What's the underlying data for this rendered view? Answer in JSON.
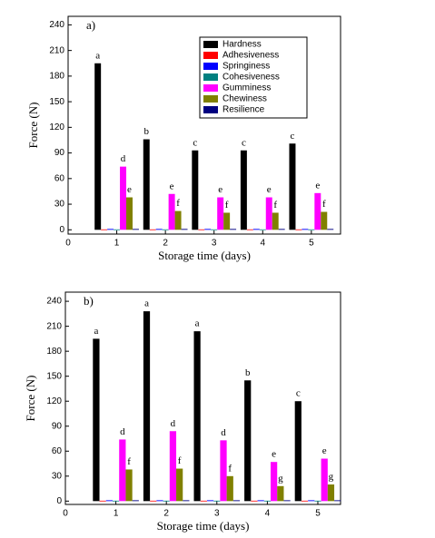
{
  "chart_data": [
    {
      "type": "bar",
      "label": "a)",
      "ylabel": "Force (N)",
      "xlabel": "Storage time (days)",
      "x": [
        1,
        2,
        3,
        4,
        5
      ],
      "xlim": [
        0,
        5.6
      ],
      "xticks": [
        0,
        1,
        2,
        3,
        4,
        5
      ],
      "ylim": [
        -5,
        250
      ],
      "yticks": [
        0,
        30,
        60,
        90,
        120,
        150,
        180,
        210,
        240
      ],
      "legend": "upper right",
      "series": [
        {
          "name": "Hardness",
          "color": "#000000",
          "values": [
            195,
            106,
            93,
            93,
            101
          ],
          "letters": [
            "a",
            "b",
            "c",
            "c",
            "c"
          ]
        },
        {
          "name": "Adhesiveness",
          "color": "#ff0000",
          "values": [
            0.5,
            0.5,
            0.5,
            0.5,
            0.5
          ]
        },
        {
          "name": "Springiness",
          "color": "#0000ff",
          "values": [
            1,
            1,
            1,
            1,
            1
          ]
        },
        {
          "name": "Cohesiveness",
          "color": "#008080",
          "values": [
            0.5,
            0.5,
            0.5,
            0.5,
            0.5
          ]
        },
        {
          "name": "Gumminess",
          "color": "#ff00ff",
          "values": [
            74,
            42,
            38,
            38,
            43
          ],
          "letters": [
            "d",
            "e",
            "e",
            "e",
            "e"
          ]
        },
        {
          "name": "Chewiness",
          "color": "#808000",
          "values": [
            38,
            22,
            20,
            20,
            21
          ],
          "letters": [
            "e",
            "f",
            "f",
            "f",
            "f"
          ]
        },
        {
          "name": "Resilience",
          "color": "#000080",
          "values": [
            1,
            1,
            1,
            1,
            1
          ]
        }
      ]
    },
    {
      "type": "bar",
      "label": "b)",
      "ylabel": "Force (N)",
      "xlabel": "Storage time (days)",
      "x": [
        1,
        2,
        3,
        4,
        5
      ],
      "xlim": [
        0,
        5.45
      ],
      "xticks": [
        0,
        1,
        2,
        3,
        4,
        5
      ],
      "ylim": [
        -4,
        251
      ],
      "yticks": [
        0,
        30,
        60,
        90,
        120,
        150,
        180,
        210,
        240
      ],
      "series": [
        {
          "color": "#000000",
          "values": [
            195,
            228,
            204,
            145,
            120
          ],
          "letters": [
            "a",
            "a",
            "a",
            "b",
            "c"
          ]
        },
        {
          "color": "#ff0000",
          "values": [
            0.5,
            0.5,
            0.5,
            0.5,
            0.5
          ]
        },
        {
          "color": "#0000ff",
          "values": [
            1,
            1,
            1,
            1,
            1
          ]
        },
        {
          "color": "#008080",
          "values": [
            0.5,
            0.5,
            0.5,
            0.5,
            0.5
          ]
        },
        {
          "color": "#ff00ff",
          "values": [
            74,
            84,
            73,
            47,
            51
          ],
          "letters": [
            "d",
            "d",
            "d",
            "e",
            "e"
          ]
        },
        {
          "color": "#808000",
          "values": [
            38,
            39,
            30,
            18,
            20
          ],
          "letters": [
            "f",
            "f",
            "f",
            "g",
            "g"
          ]
        },
        {
          "color": "#000080",
          "values": [
            1,
            1,
            1,
            1,
            1
          ]
        }
      ]
    }
  ]
}
